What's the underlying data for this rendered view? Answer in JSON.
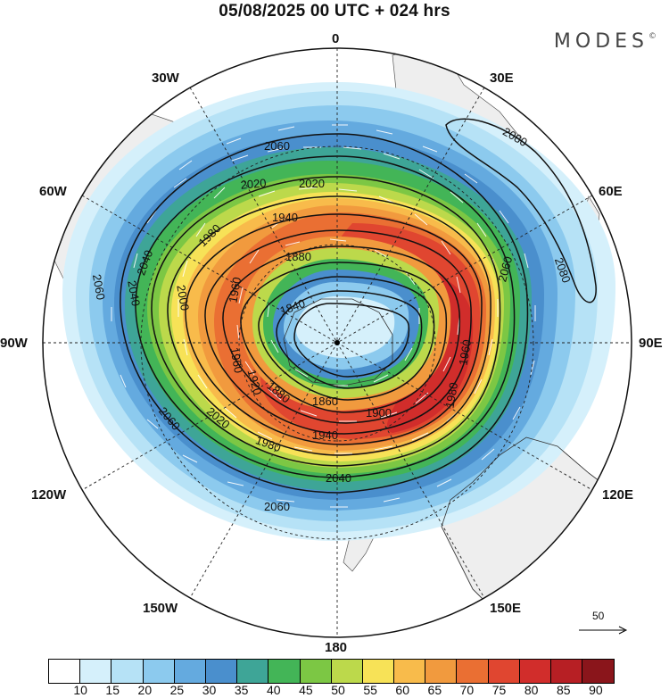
{
  "title": "05/08/2025  00 UTC  + 024 hrs",
  "brand": "MODES",
  "brand_mark": "©",
  "longitude_labels": {
    "n0": "0",
    "e30": "30E",
    "e60": "60E",
    "e90": "90E",
    "e120": "120E",
    "e150": "150E",
    "s180": "180",
    "w150": "150W",
    "w120": "120W",
    "w90": "90W",
    "w60": "60W",
    "w30": "30W"
  },
  "contour_labels": [
    "2080",
    "2080",
    "2060",
    "2060",
    "2060",
    "2060",
    "2060",
    "2040",
    "2040",
    "2040",
    "2020",
    "2020",
    "2020",
    "2000",
    "1980",
    "1980",
    "1980",
    "1960",
    "1960",
    "1960",
    "1940",
    "1940",
    "1920",
    "1900",
    "1880",
    "1880",
    "1860",
    "1840"
  ],
  "wind_reference": {
    "value": "50"
  },
  "colorbar": {
    "colors": [
      "#ffffff",
      "#d5f0fb",
      "#b6e2f6",
      "#8ccaee",
      "#64aadf",
      "#4a8fcd",
      "#3ea597",
      "#43b557",
      "#7cc744",
      "#bcd94b",
      "#f7e257",
      "#f8bb4b",
      "#f19a3e",
      "#ea6f33",
      "#e04630",
      "#d12d2b",
      "#b71f24",
      "#8a151b"
    ],
    "ticks": [
      "10",
      "15",
      "20",
      "25",
      "30",
      "35",
      "40",
      "45",
      "50",
      "55",
      "60",
      "65",
      "70",
      "75",
      "80",
      "85",
      "90"
    ]
  }
}
